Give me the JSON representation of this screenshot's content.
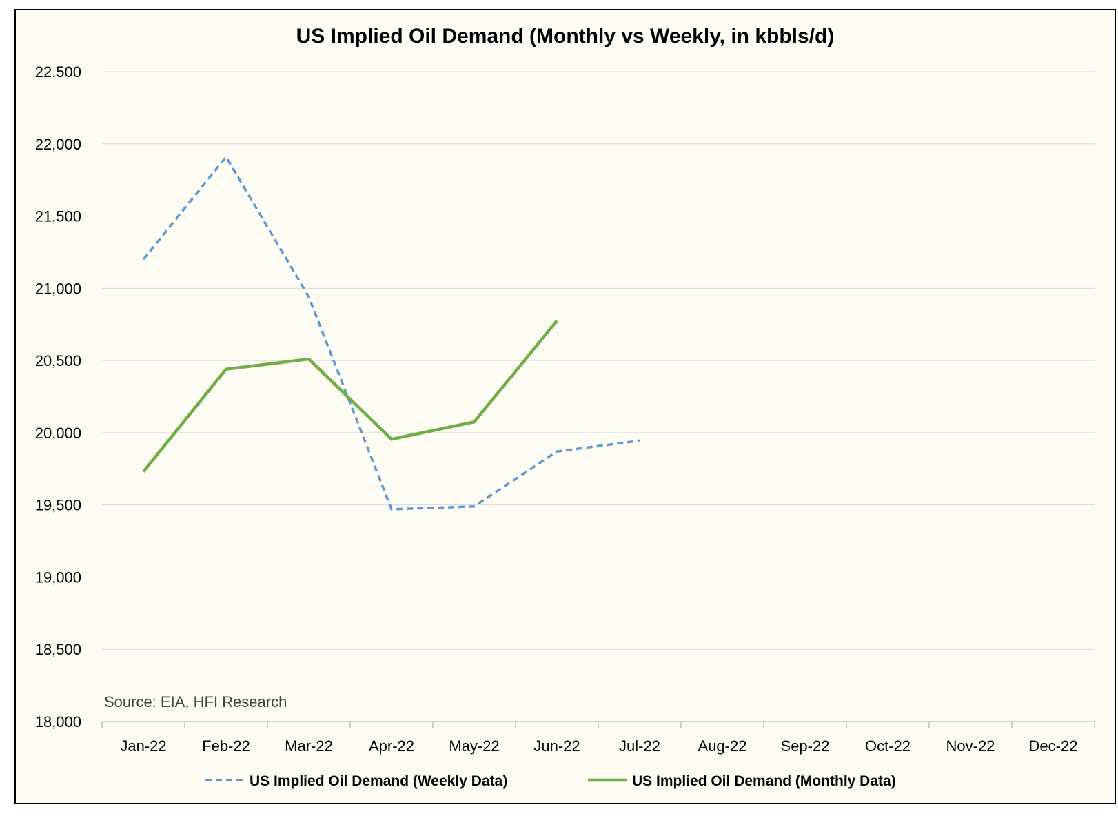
{
  "chart_data": {
    "type": "line",
    "title": "US Implied Oil Demand (Monthly vs Weekly, in kbbls/d)",
    "categories": [
      "Jan-22",
      "Feb-22",
      "Mar-22",
      "Apr-22",
      "May-22",
      "Jun-22",
      "Jul-22",
      "Aug-22",
      "Sep-22",
      "Oct-22",
      "Nov-22",
      "Dec-22"
    ],
    "ylim": [
      18000,
      22500
    ],
    "yticks": [
      18000,
      18500,
      19000,
      19500,
      20000,
      20500,
      21000,
      21500,
      22000,
      22500
    ],
    "ytick_labels": [
      "18,000",
      "18,500",
      "19,000",
      "19,500",
      "20,000",
      "20,500",
      "21,000",
      "21,500",
      "22,000",
      "22,500"
    ],
    "grid": true,
    "legend_position": "bottom",
    "series": [
      {
        "name": "US Implied Oil Demand (Weekly Data)",
        "style": "dashed",
        "color": "#5B9BD5",
        "values": [
          21200,
          21910,
          20940,
          19470,
          19490,
          19870,
          19945,
          null,
          null,
          null,
          null,
          null
        ]
      },
      {
        "name": "US Implied Oil Demand (Monthly Data)",
        "style": "solid",
        "color": "#70AD47",
        "values": [
          19730,
          20440,
          20510,
          19955,
          20075,
          20775,
          null,
          null,
          null,
          null,
          null,
          null
        ]
      }
    ],
    "source": "Source: EIA, HFI Research"
  },
  "colors": {
    "background": "#FDFBF2",
    "grid": "#D9D9D9",
    "border": "#000000"
  }
}
